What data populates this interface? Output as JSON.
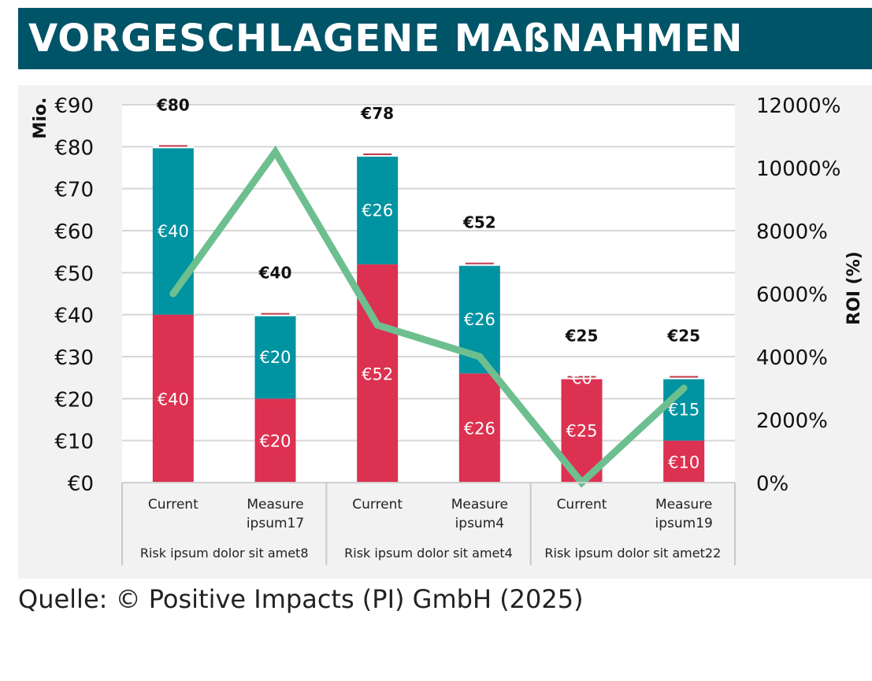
{
  "header": {
    "title": "VORGESCHLAGENE MAßNAHMEN"
  },
  "source": "Quelle: © Positive Impacts (PI) GmbH (2025)",
  "colors": {
    "banner": "#005468",
    "bottom_series": "#dc3150",
    "top_series": "#0093a1",
    "roi_line": "#6dbf90",
    "total_marker": "#c0394b"
  },
  "chart_data": {
    "type": "bar",
    "stacked": true,
    "title": "VORGESCHLAGENE MAßNAHMEN",
    "ylabel": "Mio.",
    "y2label": "ROI (%)",
    "ylim": [
      0,
      90
    ],
    "y2lim": [
      0,
      12000
    ],
    "yticks": [
      "€0",
      "€10",
      "€20",
      "€30",
      "€40",
      "€50",
      "€60",
      "€70",
      "€80",
      "€90"
    ],
    "y2ticks": [
      "0%",
      "2000%",
      "4000%",
      "6000%",
      "8000%",
      "10000%",
      "12000%"
    ],
    "grid": true,
    "categories": [
      {
        "label": [
          "Current"
        ],
        "group": "Risk ipsum dolor sit amet8"
      },
      {
        "label": [
          "Measure",
          "ipsum17"
        ],
        "group": "Risk ipsum dolor sit amet8"
      },
      {
        "label": [
          "Current"
        ],
        "group": "Risk ipsum dolor sit amet4"
      },
      {
        "label": [
          "Measure",
          "ipsum4"
        ],
        "group": "Risk ipsum dolor sit amet4"
      },
      {
        "label": [
          "Current"
        ],
        "group": "Risk ipsum dolor sit amet22"
      },
      {
        "label": [
          "Measure",
          "ipsum19"
        ],
        "group": "Risk ipsum dolor sit amet22"
      }
    ],
    "groups": [
      "Risk ipsum dolor sit amet8",
      "Risk ipsum dolor sit amet4",
      "Risk ipsum dolor sit amet22"
    ],
    "series": [
      {
        "name": "bottom",
        "color": "#dc3150",
        "values": [
          40,
          20,
          52,
          26,
          25,
          10
        ],
        "labels": [
          "€40",
          "€20",
          "€52",
          "€26",
          "€25",
          "€10"
        ]
      },
      {
        "name": "top",
        "color": "#0093a1",
        "values": [
          40,
          20,
          26,
          26,
          0,
          15
        ],
        "labels": [
          "€40",
          "€20",
          "€26",
          "€26",
          "€0",
          "€15"
        ]
      }
    ],
    "totals": {
      "values": [
        80,
        40,
        78,
        52,
        25,
        25
      ],
      "labels": [
        "€80",
        "€40",
        "€78",
        "€52",
        "€25",
        "€25"
      ]
    },
    "roi": {
      "name": "ROI (%)",
      "axis": "right",
      "color": "#6dbf90",
      "values": [
        6000,
        10500,
        5000,
        4000,
        0,
        3000
      ]
    }
  }
}
